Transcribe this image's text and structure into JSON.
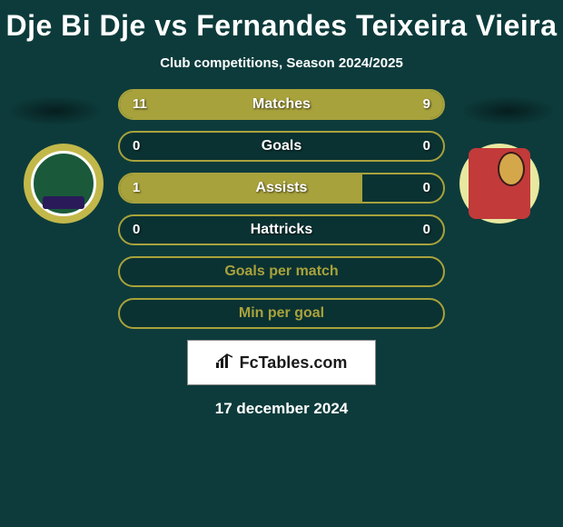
{
  "title": "Dje Bi Dje vs Fernandes Teixeira Vieira",
  "subtitle": "Club competitions, Season 2024/2025",
  "colors": {
    "background": "#0d3b3b",
    "bar_border": "#a8a23c",
    "bar_fill": "#a8a23c",
    "text": "#ffffff",
    "empty_text": "#a8a23c"
  },
  "stats": [
    {
      "label": "Matches",
      "left_val": "11",
      "right_val": "9",
      "left_pct": 55,
      "right_pct": 45
    },
    {
      "label": "Goals",
      "left_val": "0",
      "right_val": "0",
      "left_pct": 0,
      "right_pct": 0
    },
    {
      "label": "Assists",
      "left_val": "1",
      "right_val": "0",
      "left_pct": 75,
      "right_pct": 0
    },
    {
      "label": "Hattricks",
      "left_val": "0",
      "right_val": "0",
      "left_pct": 0,
      "right_pct": 0
    }
  ],
  "empty_rows": [
    {
      "label": "Goals per match"
    },
    {
      "label": "Min per goal"
    }
  ],
  "footer_brand": "FcTables.com",
  "date": "17 december 2024"
}
